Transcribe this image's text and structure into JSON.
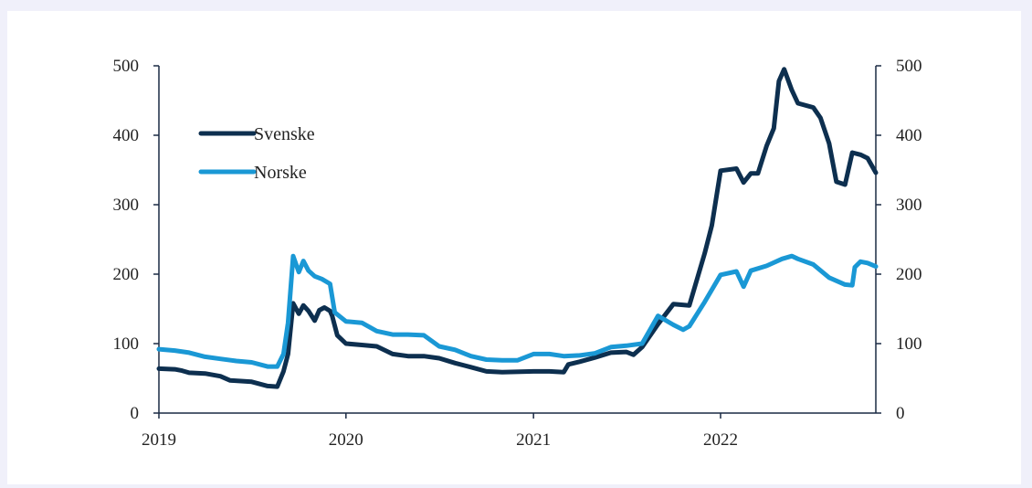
{
  "chart_data": {
    "type": "line",
    "title": "",
    "xlabel": "",
    "ylabel": "",
    "x_range": [
      "2019-01-01",
      "2022-10-31"
    ],
    "x_ticks": [
      {
        "date": "2019-01-01",
        "label": "2019"
      },
      {
        "date": "2020-01-01",
        "label": "2020"
      },
      {
        "date": "2021-01-01",
        "label": "2021"
      },
      {
        "date": "2022-01-01",
        "label": "2022"
      }
    ],
    "ylim": [
      0,
      500
    ],
    "y_ticks": [
      0,
      100,
      200,
      300,
      400,
      500
    ],
    "y_tick_labels": [
      "0",
      "100",
      "200",
      "300",
      "400",
      "500"
    ],
    "secondary_ylim": [
      0,
      500
    ],
    "secondary_y_ticks": [
      0,
      100,
      200,
      300,
      400,
      500
    ],
    "secondary_y_tick_labels": [
      "0",
      "100",
      "200",
      "300",
      "400",
      "500"
    ],
    "grid": false,
    "legend_position": "top-left",
    "series": [
      {
        "name": "Svenske",
        "color": "#0d2f4f",
        "points": [
          [
            "2019-01-01",
            64
          ],
          [
            "2019-02-01",
            63
          ],
          [
            "2019-02-15",
            61
          ],
          [
            "2019-03-01",
            58
          ],
          [
            "2019-04-01",
            57
          ],
          [
            "2019-05-01",
            53
          ],
          [
            "2019-05-20",
            47
          ],
          [
            "2019-07-01",
            45
          ],
          [
            "2019-08-01",
            39
          ],
          [
            "2019-08-20",
            38
          ],
          [
            "2019-09-01",
            60
          ],
          [
            "2019-09-10",
            85
          ],
          [
            "2019-09-20",
            158
          ],
          [
            "2019-10-01",
            143
          ],
          [
            "2019-10-10",
            155
          ],
          [
            "2019-10-20",
            147
          ],
          [
            "2019-11-01",
            133
          ],
          [
            "2019-11-10",
            148
          ],
          [
            "2019-11-20",
            152
          ],
          [
            "2019-12-01",
            147
          ],
          [
            "2019-12-05",
            140
          ],
          [
            "2019-12-15",
            112
          ],
          [
            "2020-01-01",
            100
          ],
          [
            "2020-02-01",
            98
          ],
          [
            "2020-03-01",
            96
          ],
          [
            "2020-04-01",
            85
          ],
          [
            "2020-05-01",
            82
          ],
          [
            "2020-06-01",
            82
          ],
          [
            "2020-07-01",
            79
          ],
          [
            "2020-08-01",
            72
          ],
          [
            "2020-09-01",
            66
          ],
          [
            "2020-10-01",
            60
          ],
          [
            "2020-11-01",
            59
          ],
          [
            "2021-01-01",
            60
          ],
          [
            "2021-02-01",
            60
          ],
          [
            "2021-03-01",
            59
          ],
          [
            "2021-03-10",
            70
          ],
          [
            "2021-04-01",
            74
          ],
          [
            "2021-05-01",
            80
          ],
          [
            "2021-06-01",
            87
          ],
          [
            "2021-07-01",
            88
          ],
          [
            "2021-07-15",
            84
          ],
          [
            "2021-08-01",
            95
          ],
          [
            "2021-09-01",
            128
          ],
          [
            "2021-10-01",
            157
          ],
          [
            "2021-11-01",
            155
          ],
          [
            "2021-12-01",
            230
          ],
          [
            "2021-12-15",
            270
          ],
          [
            "2022-01-01",
            349
          ],
          [
            "2022-02-01",
            352
          ],
          [
            "2022-02-15",
            332
          ],
          [
            "2022-03-01",
            345
          ],
          [
            "2022-03-15",
            345
          ],
          [
            "2022-04-01",
            385
          ],
          [
            "2022-04-15",
            410
          ],
          [
            "2022-04-25",
            478
          ],
          [
            "2022-05-05",
            495
          ],
          [
            "2022-05-20",
            465
          ],
          [
            "2022-06-01",
            446
          ],
          [
            "2022-07-01",
            440
          ],
          [
            "2022-07-15",
            425
          ],
          [
            "2022-08-01",
            388
          ],
          [
            "2022-08-15",
            333
          ],
          [
            "2022-09-01",
            329
          ],
          [
            "2022-09-15",
            375
          ],
          [
            "2022-10-01",
            372
          ],
          [
            "2022-10-15",
            367
          ],
          [
            "2022-10-31",
            346
          ]
        ]
      },
      {
        "name": "Norske",
        "color": "#1a98d5",
        "points": [
          [
            "2019-01-01",
            92
          ],
          [
            "2019-02-01",
            90
          ],
          [
            "2019-03-01",
            87
          ],
          [
            "2019-04-01",
            81
          ],
          [
            "2019-05-01",
            78
          ],
          [
            "2019-06-01",
            75
          ],
          [
            "2019-07-01",
            73
          ],
          [
            "2019-08-01",
            67
          ],
          [
            "2019-08-20",
            67
          ],
          [
            "2019-09-01",
            85
          ],
          [
            "2019-09-10",
            130
          ],
          [
            "2019-09-20",
            226
          ],
          [
            "2019-10-01",
            203
          ],
          [
            "2019-10-10",
            219
          ],
          [
            "2019-10-20",
            205
          ],
          [
            "2019-11-01",
            197
          ],
          [
            "2019-11-15",
            193
          ],
          [
            "2019-12-01",
            186
          ],
          [
            "2019-12-10",
            145
          ],
          [
            "2020-01-01",
            132
          ],
          [
            "2020-02-01",
            130
          ],
          [
            "2020-03-01",
            118
          ],
          [
            "2020-04-01",
            113
          ],
          [
            "2020-05-01",
            113
          ],
          [
            "2020-06-01",
            112
          ],
          [
            "2020-07-01",
            96
          ],
          [
            "2020-08-01",
            91
          ],
          [
            "2020-09-01",
            82
          ],
          [
            "2020-10-01",
            77
          ],
          [
            "2020-11-01",
            76
          ],
          [
            "2020-12-01",
            76
          ],
          [
            "2021-01-01",
            85
          ],
          [
            "2021-02-01",
            85
          ],
          [
            "2021-03-01",
            82
          ],
          [
            "2021-04-01",
            83
          ],
          [
            "2021-05-01",
            86
          ],
          [
            "2021-06-01",
            95
          ],
          [
            "2021-07-01",
            97
          ],
          [
            "2021-08-01",
            100
          ],
          [
            "2021-09-01",
            140
          ],
          [
            "2021-10-01",
            127
          ],
          [
            "2021-10-20",
            120
          ],
          [
            "2021-11-01",
            125
          ],
          [
            "2021-12-01",
            160
          ],
          [
            "2022-01-01",
            199
          ],
          [
            "2022-02-01",
            204
          ],
          [
            "2022-02-15",
            182
          ],
          [
            "2022-03-01",
            205
          ],
          [
            "2022-04-01",
            212
          ],
          [
            "2022-05-01",
            222
          ],
          [
            "2022-05-20",
            226
          ],
          [
            "2022-06-01",
            222
          ],
          [
            "2022-07-01",
            214
          ],
          [
            "2022-08-01",
            195
          ],
          [
            "2022-09-01",
            185
          ],
          [
            "2022-09-15",
            184
          ],
          [
            "2022-09-20",
            210
          ],
          [
            "2022-10-01",
            218
          ],
          [
            "2022-10-15",
            216
          ],
          [
            "2022-10-31",
            211
          ]
        ]
      }
    ]
  }
}
